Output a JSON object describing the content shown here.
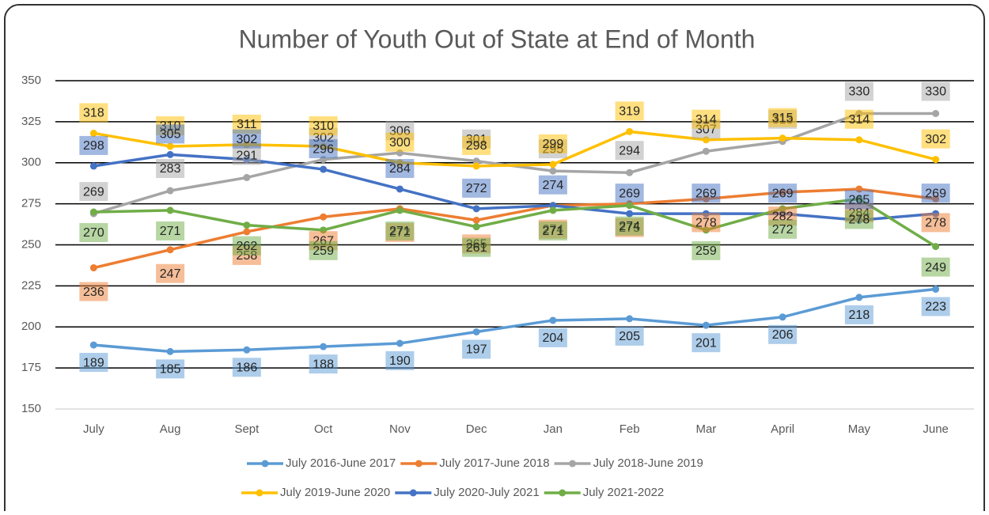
{
  "chart_data": {
    "type": "line",
    "title": "Number of Youth Out of State at End of Month",
    "categories": [
      "July",
      "Aug",
      "Sept",
      "Oct",
      "Nov",
      "Dec",
      "Jan",
      "Feb",
      "Mar",
      "April",
      "May",
      "June"
    ],
    "series": [
      {
        "name": "July 2016-June 2017",
        "color": "#5b9bd5",
        "values": [
          189,
          185,
          186,
          188,
          190,
          197,
          204,
          205,
          201,
          206,
          218,
          223
        ]
      },
      {
        "name": "July 2017-June 2018",
        "color": "#ed7d31",
        "values": [
          236,
          247,
          258,
          267,
          272,
          265,
          274,
          275,
          278,
          282,
          284,
          278
        ]
      },
      {
        "name": "July 2018-June 2019",
        "color": "#a5a5a5",
        "values": [
          269,
          283,
          291,
          302,
          306,
          301,
          295,
          294,
          307,
          313,
          330,
          330
        ]
      },
      {
        "name": "July 2019-June 2020",
        "color": "#ffc000",
        "values": [
          318,
          310,
          311,
          310,
          300,
          298,
          299,
          319,
          314,
          315,
          314,
          302
        ]
      },
      {
        "name": "July 2020-July 2021",
        "color": "#4472c4",
        "values": [
          298,
          305,
          302,
          296,
          284,
          272,
          274,
          269,
          269,
          269,
          265,
          269
        ]
      },
      {
        "name": "July 2021-2022",
        "color": "#70ad47",
        "values": [
          270,
          271,
          262,
          259,
          271,
          261,
          271,
          274,
          259,
          272,
          278,
          249
        ]
      }
    ],
    "ylim": [
      150,
      350
    ],
    "yticks": [
      150,
      175,
      200,
      225,
      250,
      275,
      300,
      325,
      350
    ],
    "grid": true,
    "legend": "bottom"
  }
}
